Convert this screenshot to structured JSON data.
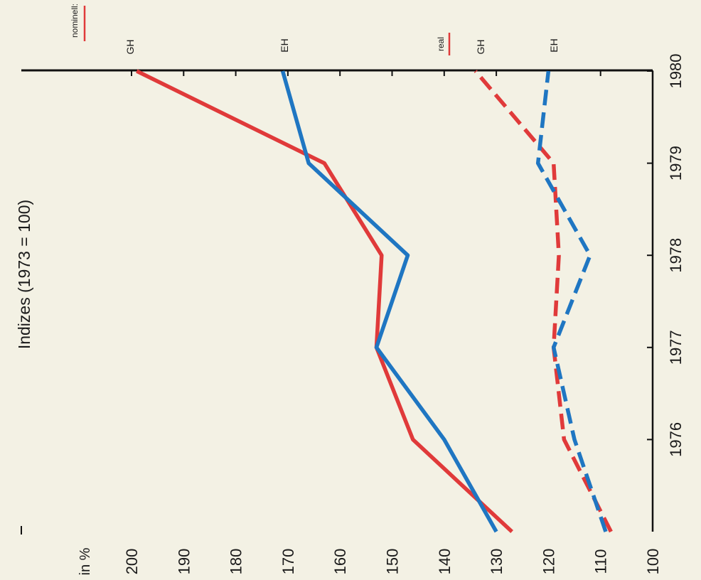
{
  "chart_data": {
    "type": "line",
    "orientation": "rotated-90-counterclockwise",
    "title": "Indizes (1973 = 100)",
    "unit_label": "in %",
    "x": [
      1975,
      1976,
      1977,
      1978,
      1979,
      1980
    ],
    "x_tick_labels": [
      "1976",
      "1977",
      "1978",
      "1979",
      "1980"
    ],
    "y_tick_labels": [
      "100",
      "110",
      "120",
      "130",
      "140",
      "150",
      "160",
      "170",
      "180",
      "190",
      "200"
    ],
    "ylim": [
      100,
      210
    ],
    "grid": false,
    "legend": {
      "nominal_label": "nominell:",
      "real_label": "real",
      "gh_label": "GH",
      "eh_label": "EH"
    },
    "series": [
      {
        "name": "nominell GH",
        "color": "#e03a3a",
        "dash": false,
        "values": [
          127,
          146,
          153,
          152,
          163,
          199
        ]
      },
      {
        "name": "nominell EH",
        "color": "#1f76c2",
        "dash": false,
        "values": [
          130,
          140,
          153,
          147,
          166,
          171
        ]
      },
      {
        "name": "real GH",
        "color": "#e03a3a",
        "dash": true,
        "values": [
          108,
          117,
          119,
          118,
          119,
          134
        ]
      },
      {
        "name": "real EH",
        "color": "#1f76c2",
        "dash": true,
        "values": [
          109,
          115,
          119,
          112,
          122,
          120
        ]
      }
    ]
  }
}
